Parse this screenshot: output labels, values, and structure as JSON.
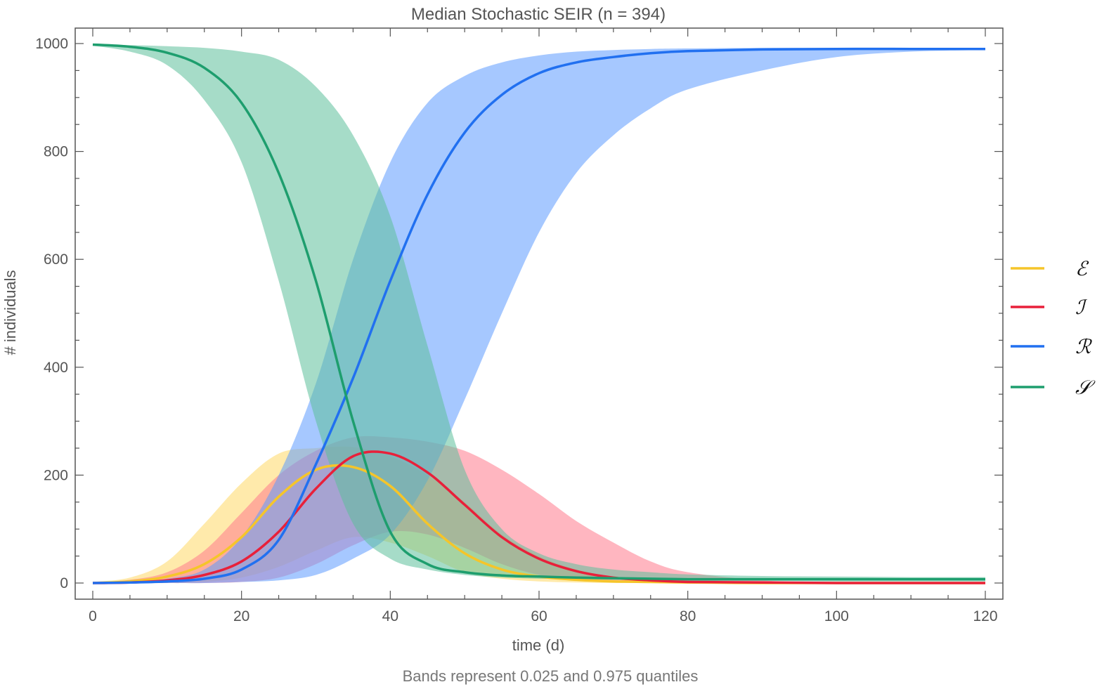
{
  "chart_data": {
    "type": "line",
    "title": "Median Stochastic SEIR (n = 394)",
    "xlabel": "time (d)",
    "ylabel": "# individuals",
    "caption": "Bands represent 0.025 and 0.975 quantiles",
    "xlim": [
      0,
      120
    ],
    "ylim": [
      0,
      1000
    ],
    "xticks": [
      "0",
      "20",
      "40",
      "60",
      "80",
      "100",
      "120"
    ],
    "yticks": [
      "0",
      "200",
      "400",
      "600",
      "800",
      "1000"
    ],
    "legend_position": "right",
    "grid": false,
    "x": [
      0,
      5,
      10,
      15,
      20,
      25,
      30,
      35,
      40,
      45,
      50,
      55,
      60,
      65,
      70,
      75,
      80,
      90,
      100,
      110,
      120
    ],
    "series": [
      {
        "name": "ℰ",
        "color": "#f5c52a",
        "band_color": "#ffd966",
        "median": [
          0,
          3,
          12,
          35,
          85,
          160,
          210,
          215,
          180,
          110,
          55,
          25,
          12,
          6,
          3,
          2,
          1,
          0,
          0,
          0,
          0
        ],
        "lower": [
          0,
          0,
          0,
          2,
          10,
          30,
          60,
          85,
          75,
          50,
          20,
          8,
          3,
          1,
          0,
          0,
          0,
          0,
          0,
          0,
          0
        ],
        "upper": [
          2,
          10,
          40,
          110,
          185,
          240,
          250,
          252,
          235,
          200,
          150,
          90,
          50,
          25,
          12,
          6,
          3,
          1,
          0,
          0,
          0
        ]
      },
      {
        "name": "ℐ",
        "color": "#e8203a",
        "band_color": "#ff7a8c",
        "median": [
          0,
          1,
          5,
          15,
          40,
          95,
          175,
          235,
          240,
          205,
          145,
          85,
          45,
          22,
          10,
          5,
          2,
          1,
          0,
          0,
          0
        ],
        "lower": [
          0,
          0,
          0,
          0,
          2,
          10,
          35,
          70,
          95,
          90,
          65,
          35,
          15,
          6,
          2,
          1,
          0,
          0,
          0,
          0,
          0
        ],
        "upper": [
          1,
          6,
          20,
          60,
          130,
          200,
          245,
          270,
          270,
          262,
          245,
          210,
          165,
          115,
          75,
          40,
          20,
          5,
          1,
          0,
          0
        ]
      },
      {
        "name": "ℛ",
        "color": "#2170f0",
        "band_color": "#5c9bff",
        "median": [
          0,
          1,
          3,
          8,
          25,
          80,
          220,
          380,
          560,
          720,
          835,
          905,
          945,
          965,
          975,
          982,
          986,
          989,
          990,
          990,
          990
        ],
        "lower": [
          0,
          0,
          0,
          0,
          2,
          5,
          15,
          45,
          90,
          190,
          340,
          500,
          650,
          760,
          830,
          880,
          915,
          950,
          975,
          985,
          988
        ],
        "upper": [
          0,
          2,
          8,
          25,
          85,
          200,
          370,
          600,
          780,
          890,
          940,
          965,
          978,
          985,
          988,
          990,
          991,
          992,
          992,
          992,
          992
        ]
      },
      {
        "name": "𝒮",
        "color": "#1e9e6e",
        "band_color": "#5cc09a",
        "median": [
          998,
          994,
          983,
          955,
          890,
          760,
          560,
          300,
          95,
          35,
          20,
          14,
          12,
          10,
          9,
          8,
          7,
          7,
          7,
          7,
          7
        ],
        "lower": [
          996,
          985,
          960,
          895,
          780,
          560,
          300,
          110,
          45,
          25,
          15,
          10,
          8,
          7,
          6,
          5,
          4,
          4,
          3,
          3,
          3
        ],
        "upper": [
          998,
          997,
          995,
          992,
          985,
          970,
          920,
          830,
          680,
          440,
          210,
          100,
          55,
          35,
          25,
          20,
          16,
          13,
          12,
          11,
          11
        ]
      }
    ]
  }
}
